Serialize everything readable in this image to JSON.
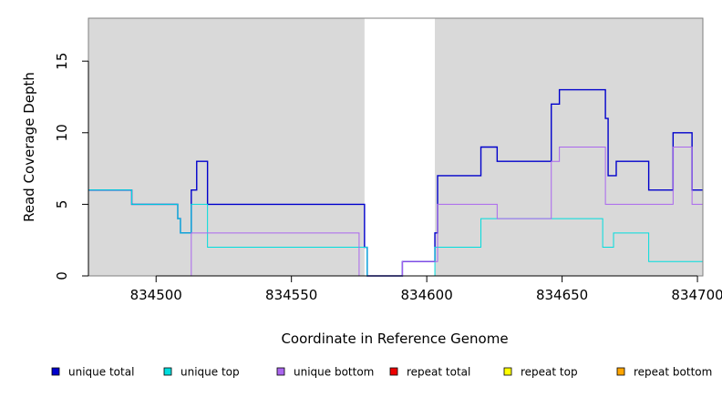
{
  "chart_data": {
    "type": "line",
    "title": "",
    "xlabel": "Coordinate in Reference Genome",
    "ylabel": "Read Coverage Depth",
    "xlim": [
      834475,
      834702
    ],
    "ylim": [
      0,
      18
    ],
    "x_ticks": [
      834500,
      834550,
      834600,
      834650,
      834700
    ],
    "y_ticks": [
      0,
      5,
      10,
      15
    ],
    "x_tick_labels": [
      "834500",
      "834550",
      "834600",
      "834650",
      "834700"
    ],
    "y_tick_labels": [
      "0",
      "5",
      "10",
      "15"
    ],
    "grid": false,
    "shaded_regions": [
      {
        "x": [
          834475,
          834577
        ],
        "color": "#d9d9d9"
      },
      {
        "x": [
          834603,
          834702
        ],
        "color": "#d9d9d9"
      }
    ],
    "legend_position": "bottom",
    "series": [
      {
        "name": "unique total",
        "color": "#0000cc",
        "x": [
          834475,
          834491,
          834508,
          834509,
          834513,
          834515,
          834519,
          834577,
          834578,
          834579,
          834591,
          834603,
          834604,
          834620,
          834626,
          834646,
          834649,
          834666,
          834667,
          834670,
          834682,
          834691,
          834698,
          834702
        ],
        "values": [
          6,
          5,
          4,
          3,
          6,
          8,
          5,
          2,
          0,
          0,
          1,
          3,
          7,
          9,
          8,
          12,
          13,
          11,
          7,
          8,
          6,
          10,
          6,
          6
        ]
      },
      {
        "name": "unique top",
        "color": "#00dddd",
        "x": [
          834475,
          834491,
          834508,
          834509,
          834513,
          834519,
          834575,
          834578,
          834603,
          834620,
          834626,
          834665,
          834669,
          834682,
          834702
        ],
        "values": [
          6,
          5,
          4,
          3,
          5,
          2,
          2,
          0,
          2,
          4,
          4,
          2,
          3,
          1,
          1
        ]
      },
      {
        "name": "unique bottom",
        "color": "#aa66ee",
        "x": [
          834475,
          834513,
          834575,
          834578,
          834591,
          834603,
          834604,
          834626,
          834646,
          834649,
          834666,
          834691,
          834698,
          834702
        ],
        "values": [
          0,
          3,
          0,
          0,
          1,
          1,
          5,
          4,
          8,
          9,
          5,
          9,
          5,
          5
        ]
      },
      {
        "name": "repeat total",
        "color": "#ee0000",
        "x": [
          834475,
          834702
        ],
        "values": [
          0,
          0
        ]
      },
      {
        "name": "repeat top",
        "color": "#ffff00",
        "x": [
          834475,
          834702
        ],
        "values": [
          0,
          0
        ]
      },
      {
        "name": "repeat bottom",
        "color": "#ffa500",
        "x": [
          834475,
          834702
        ],
        "values": [
          0,
          0
        ]
      }
    ]
  }
}
